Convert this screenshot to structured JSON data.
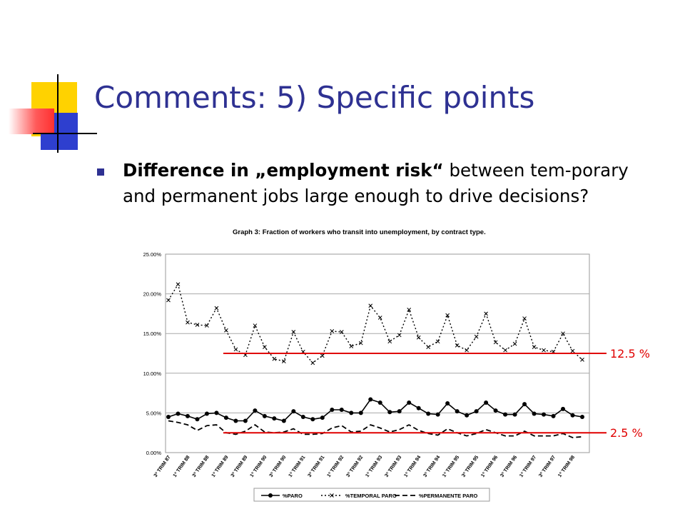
{
  "slide": {
    "title": "Comments: 5) Specific points",
    "bullet_bold": "Difference in „employment risk“",
    "bullet_rest": " between tem-porary and permanent jobs large enough to drive decisions?"
  },
  "colors": {
    "title": "#2e3192",
    "reference_lines": "#e00000",
    "series": "#000000"
  },
  "chart_data": {
    "type": "line",
    "title": "Graph 3: Fraction of workers who transit into unemployment, by contract type.",
    "ylim": [
      0,
      25
    ],
    "y_ticks": [
      "0.00%",
      "5.00%",
      "10.00%",
      "15.00%",
      "20.00%",
      "25.00%"
    ],
    "x_tick_labels": [
      "3º TRIM 87",
      "1º TRIM 88",
      "3º TRIM 88",
      "1º TRIM 89",
      "3º TRIM 89",
      "1º TRIM 90",
      "3º TRIM 90",
      "1º TRIM 91",
      "3º TRIM 91",
      "1º TRIM 92",
      "3º TRIM 92",
      "1º TRIM 93",
      "3º TRIM 93",
      "1º TRIM 94",
      "3º TRIM 94",
      "1º TRIM 95",
      "3º TRIM 95",
      "1º TRIM 96",
      "3º TRIM 96",
      "1º TRIM 97",
      "3º TRIM 97",
      "1º TRIM 98"
    ],
    "grid": true,
    "legend_position": "bottom",
    "series": [
      {
        "name": "%PARO",
        "style": "solid-circle",
        "values": [
          4.5,
          4.9,
          4.6,
          4.2,
          4.9,
          5.0,
          4.4,
          4.0,
          4.0,
          5.3,
          4.6,
          4.3,
          4.0,
          5.2,
          4.5,
          4.2,
          4.4,
          5.4,
          5.4,
          5.0,
          5.0,
          6.7,
          6.3,
          5.1,
          5.2,
          6.3,
          5.6,
          4.9,
          4.8,
          6.2,
          5.2,
          4.7,
          5.2,
          6.3,
          5.3,
          4.8,
          4.8,
          6.1,
          4.9,
          4.8,
          4.6,
          5.5,
          4.7,
          4.5
        ]
      },
      {
        "name": "%TEMPORAL PARO",
        "style": "dotted-x",
        "values": [
          19.2,
          21.2,
          16.4,
          16.1,
          16.0,
          18.2,
          15.4,
          13.0,
          12.3,
          16.0,
          13.3,
          11.8,
          11.5,
          15.2,
          12.7,
          11.3,
          12.2,
          15.3,
          15.2,
          13.4,
          13.8,
          18.5,
          17.0,
          14.0,
          14.8,
          18.0,
          14.5,
          13.3,
          14.0,
          17.3,
          13.5,
          12.9,
          14.6,
          17.5,
          13.9,
          12.9,
          13.7,
          16.9,
          13.3,
          12.9,
          12.7,
          15.0,
          12.8,
          11.7
        ]
      },
      {
        "name": "%PERMANENTE PARO",
        "style": "dashed",
        "values": [
          4.0,
          3.8,
          3.5,
          2.8,
          3.4,
          3.5,
          2.5,
          2.3,
          2.7,
          3.5,
          2.6,
          2.5,
          2.6,
          3.0,
          2.3,
          2.3,
          2.4,
          3.1,
          3.4,
          2.6,
          2.7,
          3.5,
          3.1,
          2.6,
          2.9,
          3.5,
          2.8,
          2.4,
          2.2,
          3.0,
          2.5,
          2.1,
          2.4,
          2.9,
          2.5,
          2.1,
          2.1,
          2.7,
          2.1,
          2.1,
          2.1,
          2.4,
          1.9,
          2.0
        ]
      }
    ],
    "reference_lines": [
      {
        "value": 12.5,
        "label": "12.5 %",
        "from_index": 6
      },
      {
        "value": 2.5,
        "label": "2.5 %",
        "from_index": 6
      }
    ]
  }
}
